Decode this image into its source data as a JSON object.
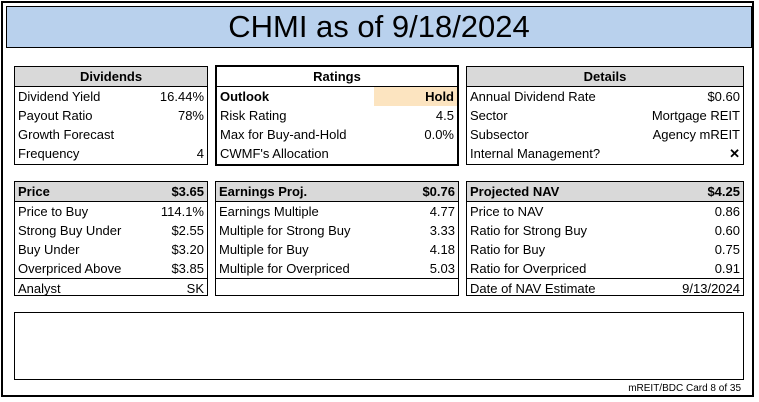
{
  "title": "CHMI as of 9/18/2024",
  "dividends": {
    "header": "Dividends",
    "rows": [
      {
        "label": "Dividend Yield",
        "value": "16.44%"
      },
      {
        "label": "Payout Ratio",
        "value": "78%"
      },
      {
        "label": "Growth Forecast",
        "value": ""
      },
      {
        "label": "Frequency",
        "value": "4"
      }
    ]
  },
  "ratings": {
    "header": "Ratings",
    "rows": [
      {
        "label": "Outlook",
        "value": "Hold"
      },
      {
        "label": "Risk Rating",
        "value": "4.5"
      },
      {
        "label": "Max for Buy-and-Hold",
        "value": "0.0%"
      },
      {
        "label": "CWMF's Allocation",
        "value": ""
      }
    ]
  },
  "details": {
    "header": "Details",
    "rows": [
      {
        "label": "Annual Dividend Rate",
        "value": "$0.60"
      },
      {
        "label": "Sector",
        "value": "Mortgage REIT"
      },
      {
        "label": "Subsector",
        "value": "Agency mREIT"
      },
      {
        "label": "Internal Management?",
        "value": "✕"
      }
    ]
  },
  "price": {
    "header": "Price",
    "header_value": "$3.65",
    "rows": [
      {
        "label": "Price to Buy",
        "value": "114.1%"
      },
      {
        "label": "Strong Buy Under",
        "value": "$2.55"
      },
      {
        "label": "Buy Under",
        "value": "$3.20"
      },
      {
        "label": "Overpriced Above",
        "value": "$3.85"
      },
      {
        "label": "Analyst",
        "value": "SK"
      }
    ]
  },
  "earnings": {
    "header": "Earnings Proj.",
    "header_value": "$0.76",
    "rows": [
      {
        "label": "Earnings Multiple",
        "value": "4.77"
      },
      {
        "label": "Multiple for Strong Buy",
        "value": "3.33"
      },
      {
        "label": "Multiple for Buy",
        "value": "4.18"
      },
      {
        "label": "Multiple for Overpriced",
        "value": "5.03"
      },
      {
        "label": "",
        "value": ""
      }
    ]
  },
  "nav": {
    "header": "Projected NAV",
    "header_value": "$4.25",
    "rows": [
      {
        "label": "Price to NAV",
        "value": "0.86"
      },
      {
        "label": "Ratio for Strong Buy",
        "value": "0.60"
      },
      {
        "label": "Ratio for Buy",
        "value": "0.75"
      },
      {
        "label": "Ratio for Overpriced",
        "value": "0.91"
      },
      {
        "label": "Date of NAV Estimate",
        "value": "9/13/2024"
      }
    ]
  },
  "footer": "mREIT/BDC Card 8 of 35"
}
